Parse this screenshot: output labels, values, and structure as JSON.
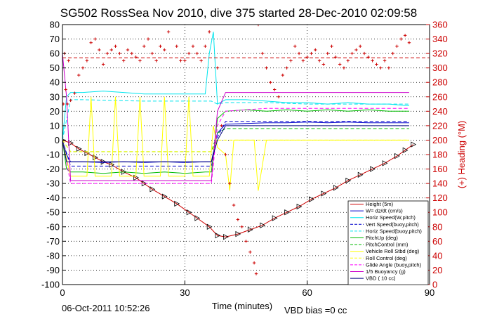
{
  "chart_data": {
    "type": "line",
    "title": "SG502 RossSea Nov 2010, dive 375 started 28-Dec-2010 02:09:58",
    "xlabel": "Time (minutes)",
    "ylabel": "",
    "y2label": "(+) Heading (°M)",
    "xlim": [
      0,
      90
    ],
    "ylim": [
      -100,
      80
    ],
    "y2lim": [
      0,
      360
    ],
    "xticks": [
      0,
      30,
      60,
      90
    ],
    "yticks": [
      -100,
      -90,
      -80,
      -70,
      -60,
      -50,
      -40,
      -30,
      -20,
      -10,
      0,
      10,
      20,
      30,
      40,
      50,
      60,
      70,
      80
    ],
    "y2ticks": [
      0,
      20,
      40,
      60,
      80,
      100,
      120,
      140,
      160,
      180,
      200,
      220,
      240,
      260,
      280,
      300,
      320,
      340,
      360
    ],
    "grid": true,
    "legend_position": "bottom-right",
    "footer_date": "06-Oct-2011 10:52:26",
    "footer_note": "VBD bias =0 cc",
    "series": [
      {
        "name": "Height (5m)",
        "color": "#cc0000",
        "style": "solid",
        "marker": "triangle",
        "x": [
          0,
          2,
          4,
          6,
          8,
          10,
          12,
          15,
          18,
          20,
          22,
          25,
          28,
          31,
          33,
          36,
          38,
          40,
          43,
          46,
          49,
          52,
          55,
          58,
          61,
          64,
          67,
          70,
          73,
          76,
          79,
          82,
          84,
          86
        ],
        "y": [
          0,
          -2,
          -6,
          -9,
          -12,
          -15,
          -17,
          -22,
          -26,
          -30,
          -34,
          -39,
          -44,
          -50,
          -54,
          -60,
          -66,
          -67,
          -65,
          -62,
          -59,
          -54,
          -50,
          -46,
          -41,
          -37,
          -33,
          -28,
          -24,
          -20,
          -16,
          -11,
          -7,
          -3
        ]
      },
      {
        "name": "W= dz/dt (cm/s)",
        "color": "#0000cc",
        "style": "solid",
        "x": [
          0,
          1,
          2,
          5,
          10,
          15,
          20,
          25,
          30,
          35,
          36.5,
          38,
          40,
          45,
          50,
          55,
          60,
          65,
          70,
          75,
          80,
          84,
          85
        ],
        "y": [
          0,
          -10,
          -15,
          -15,
          -15.5,
          -15,
          -15.5,
          -15,
          -15.5,
          -15,
          -15,
          5,
          11,
          11.5,
          12,
          12,
          12.5,
          12,
          12.5,
          12,
          12,
          12,
          12
        ]
      },
      {
        "name": "Horiz Speed(W,pitch)",
        "color": "#00e5ee",
        "style": "solid",
        "x": [
          0,
          1,
          2,
          5,
          10,
          15,
          20,
          25,
          30,
          35,
          36,
          37,
          38,
          40,
          45,
          50,
          55,
          60,
          65,
          70,
          75,
          80,
          84,
          85
        ],
        "y": [
          0,
          30,
          33,
          33,
          34,
          33,
          32,
          32,
          32,
          32,
          60,
          75,
          25,
          28,
          28,
          27,
          26,
          26,
          25,
          26,
          25,
          25,
          24,
          24
        ]
      },
      {
        "name": "Vert Speed(buoy,pitch)",
        "color": "#0000cc",
        "style": "dashed",
        "x": [
          0,
          2,
          5,
          10,
          20,
          30,
          36.5,
          38,
          40,
          50,
          60,
          70,
          80,
          85
        ],
        "y": [
          0,
          -18,
          -18,
          -18,
          -18,
          -18,
          -18,
          2,
          13,
          13,
          13,
          13,
          13,
          13
        ]
      },
      {
        "name": "Horiz Speed(buoy,pitch)",
        "color": "#00e5ee",
        "style": "dashed",
        "x": [
          0,
          2,
          5,
          20,
          30,
          36.5,
          38,
          40,
          50,
          60,
          70,
          80,
          85
        ],
        "y": [
          0,
          28,
          28,
          27,
          27,
          27,
          25,
          26,
          26,
          25,
          25,
          25,
          25
        ]
      },
      {
        "name": "PitchUp (deg)",
        "color": "#00bb00",
        "style": "solid",
        "x": [
          0,
          1,
          2,
          5,
          10,
          15,
          20,
          25,
          30,
          35,
          36.5,
          38,
          40,
          45,
          50,
          55,
          60,
          65,
          70,
          75,
          80,
          85
        ],
        "y": [
          0,
          -20,
          -22,
          -22,
          -23,
          -22,
          -23,
          -22,
          -23,
          -22,
          -22,
          15,
          20,
          21,
          20,
          21,
          20,
          21,
          20,
          21,
          20,
          20
        ]
      },
      {
        "name": "PitchControl (mm)",
        "color": "#00bb00",
        "style": "dashed",
        "x": [
          0,
          2,
          5,
          10,
          20,
          30,
          36.5,
          38,
          40,
          50,
          60,
          70,
          80,
          85
        ],
        "y": [
          0,
          -8,
          -8,
          -8,
          -8,
          -8,
          -8,
          5,
          8,
          8,
          8,
          8,
          8,
          8
        ]
      },
      {
        "name": "Vehicle Roll Stbd (deg)",
        "color": "#ffff00",
        "style": "solid",
        "x": [
          0,
          2,
          4,
          6,
          7,
          8,
          10,
          12,
          13,
          14,
          16,
          18,
          19,
          20,
          24,
          25,
          26,
          28,
          30,
          31,
          32,
          34,
          36,
          37,
          38,
          40,
          41,
          42,
          46,
          47,
          48,
          50,
          55,
          60,
          65,
          70,
          75,
          80,
          84,
          85
        ],
        "y": [
          0,
          -25,
          -25,
          -25,
          30,
          -25,
          -25,
          -25,
          30,
          -25,
          -25,
          -25,
          30,
          -25,
          -25,
          30,
          -25,
          -25,
          -25,
          30,
          -25,
          -25,
          -25,
          10,
          -5,
          -10,
          -35,
          0,
          0,
          0,
          -35,
          0,
          0,
          0,
          0,
          0,
          0,
          0,
          0,
          0
        ]
      },
      {
        "name": "Roll Control (deg)",
        "color": "#ffff00",
        "style": "dashed",
        "x": [
          0,
          2,
          10,
          20,
          30,
          36.5,
          38,
          40,
          50,
          60,
          70,
          80,
          85
        ],
        "y": [
          0,
          -8,
          -8,
          -8,
          -8,
          -8,
          0,
          0,
          0,
          0,
          0,
          0,
          0
        ]
      },
      {
        "name": "Glide Angle (buoy,pitch)",
        "color": "#ff00ff",
        "style": "dashed",
        "x": [
          0,
          2,
          5,
          20,
          30,
          36.5,
          38,
          40,
          50,
          60,
          70,
          80,
          85
        ],
        "y": [
          0,
          -30,
          -30,
          -30,
          -30,
          -30,
          10,
          20,
          22,
          22,
          22,
          22,
          22
        ]
      },
      {
        "name": "1/5 Buoyancy (g)",
        "color": "#cc00cc",
        "style": "solid",
        "x": [
          0,
          1,
          2,
          10,
          20,
          30,
          36.5,
          38,
          40,
          50,
          60,
          70,
          80,
          85
        ],
        "y": [
          60,
          30,
          -28,
          -28,
          -28,
          -28,
          -28,
          20,
          33,
          33,
          33,
          33,
          33,
          33
        ]
      },
      {
        "name": "VBD ( 10 cc)",
        "color": "#000080",
        "style": "solid",
        "x": [
          0,
          1,
          2,
          10,
          20,
          30,
          36.5,
          38,
          40,
          50,
          60,
          70,
          80,
          85
        ],
        "y": [
          0,
          -15,
          -15,
          -15,
          -15,
          -15,
          -15,
          0,
          10,
          10,
          10,
          10,
          10,
          10
        ]
      }
    ],
    "heading_reference_line": {
      "color": "#cc0000",
      "style": "dashed",
      "y2": 314
    },
    "heading": {
      "name": "(+) Heading",
      "color": "#cc0000",
      "marker": "plus",
      "x": [
        0.2,
        0.5,
        0.8,
        1.2,
        1.5,
        2,
        3,
        4,
        5,
        6,
        7,
        8,
        9,
        10,
        11,
        12,
        13,
        14,
        15,
        16,
        17,
        18,
        19,
        20,
        21,
        22,
        23,
        24,
        25,
        26,
        27,
        28,
        29,
        30,
        31,
        32,
        33,
        34,
        35,
        36,
        37,
        38,
        39,
        40,
        41,
        42,
        43,
        44,
        45,
        46,
        47,
        47.5,
        48,
        49,
        50,
        51,
        52,
        53,
        54,
        55,
        56,
        57,
        58,
        59,
        60,
        61,
        62,
        63,
        64,
        65,
        66,
        67,
        68,
        69,
        70,
        71,
        72,
        73,
        74,
        75,
        76,
        77,
        78,
        79,
        80,
        81,
        82,
        83,
        84,
        85
      ],
      "y": [
        250,
        320,
        270,
        250,
        310,
        255,
        265,
        290,
        300,
        310,
        335,
        340,
        325,
        305,
        320,
        325,
        330,
        320,
        310,
        325,
        320,
        315,
        310,
        330,
        340,
        320,
        310,
        330,
        325,
        350,
        370,
        330,
        310,
        310,
        320,
        330,
        320,
        310,
        330,
        350,
        370,
        300,
        220,
        180,
        140,
        110,
        90,
        80,
        60,
        45,
        30,
        15,
        360,
        320,
        300,
        280,
        270,
        260,
        290,
        300,
        310,
        330,
        320,
        310,
        315,
        320,
        325,
        310,
        305,
        320,
        330,
        315,
        305,
        300,
        310,
        320,
        325,
        330,
        320,
        315,
        310,
        305,
        300,
        310,
        300,
        320,
        330,
        340,
        345,
        335
      ]
    }
  }
}
